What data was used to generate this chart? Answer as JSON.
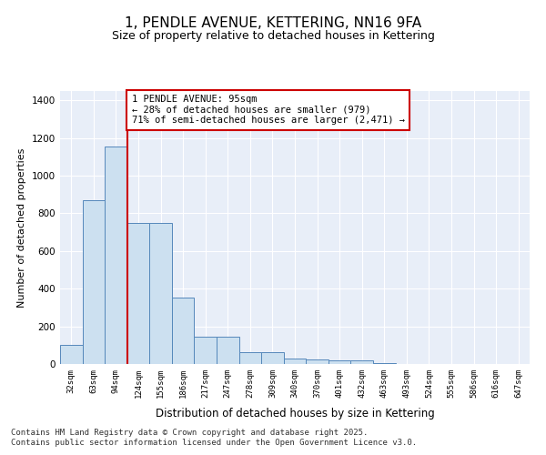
{
  "title": "1, PENDLE AVENUE, KETTERING, NN16 9FA",
  "subtitle": "Size of property relative to detached houses in Kettering",
  "xlabel": "Distribution of detached houses by size in Kettering",
  "ylabel": "Number of detached properties",
  "categories": [
    "32sqm",
    "63sqm",
    "94sqm",
    "124sqm",
    "155sqm",
    "186sqm",
    "217sqm",
    "247sqm",
    "278sqm",
    "309sqm",
    "340sqm",
    "370sqm",
    "401sqm",
    "432sqm",
    "463sqm",
    "493sqm",
    "524sqm",
    "555sqm",
    "586sqm",
    "616sqm",
    "647sqm"
  ],
  "values": [
    100,
    868,
    1155,
    748,
    748,
    352,
    145,
    145,
    62,
    62,
    30,
    25,
    18,
    18,
    5,
    2,
    0,
    0,
    2,
    0,
    0
  ],
  "bar_color": "#cce0f0",
  "bar_edge_color": "#5588bb",
  "annotation_box_color": "#cc0000",
  "annotation_text": "1 PENDLE AVENUE: 95sqm\n← 28% of detached houses are smaller (979)\n71% of semi-detached houses are larger (2,471) →",
  "vline_x_index": 2,
  "vline_color": "#cc0000",
  "ylim": [
    0,
    1450
  ],
  "yticks": [
    0,
    200,
    400,
    600,
    800,
    1000,
    1200,
    1400
  ],
  "background_color": "#e8eef8",
  "grid_color": "#d0d8e8",
  "footer_line1": "Contains HM Land Registry data © Crown copyright and database right 2025.",
  "footer_line2": "Contains public sector information licensed under the Open Government Licence v3.0.",
  "title_fontsize": 11,
  "subtitle_fontsize": 9,
  "annotation_fontsize": 7.5,
  "footer_fontsize": 6.5,
  "ylabel_fontsize": 8,
  "xlabel_fontsize": 8.5
}
